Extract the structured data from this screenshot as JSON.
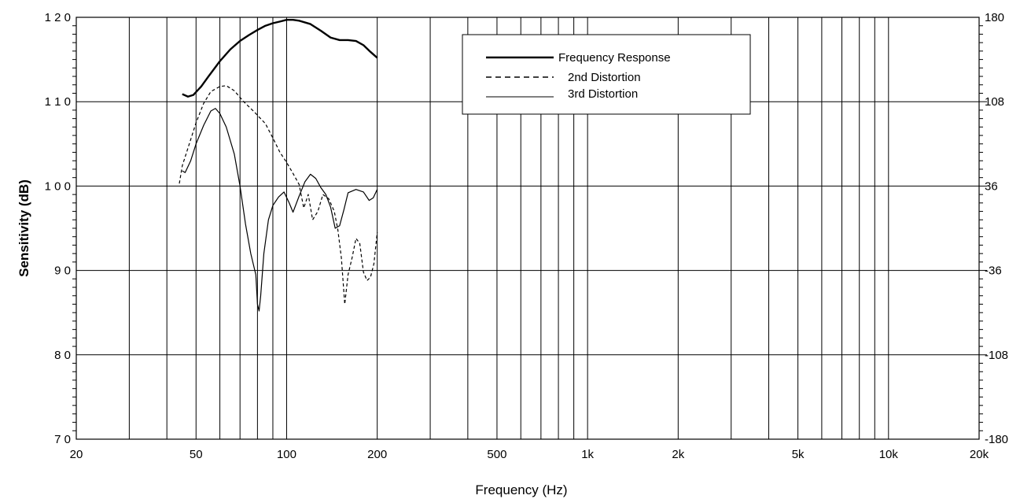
{
  "chart_data": {
    "type": "line",
    "xlabel": "Frequency (Hz)",
    "ylabel": "Sensitivity (dB)",
    "x_scale": "log",
    "xlim": [
      20,
      20000
    ],
    "ylim": [
      70,
      120
    ],
    "y2lim": [
      -180,
      180
    ],
    "grid": true,
    "legend_position": "top-center",
    "x_ticks": [
      {
        "value": 20,
        "label": "20"
      },
      {
        "value": 50,
        "label": "50"
      },
      {
        "value": 100,
        "label": "100"
      },
      {
        "value": 200,
        "label": "200"
      },
      {
        "value": 500,
        "label": "500"
      },
      {
        "value": 1000,
        "label": "1k"
      },
      {
        "value": 2000,
        "label": "2k"
      },
      {
        "value": 5000,
        "label": "5k"
      },
      {
        "value": 10000,
        "label": "10k"
      },
      {
        "value": 20000,
        "label": "20k"
      }
    ],
    "x_gridlines": [
      20,
      30,
      40,
      50,
      60,
      70,
      80,
      90,
      100,
      200,
      300,
      400,
      500,
      600,
      700,
      800,
      900,
      1000,
      2000,
      3000,
      4000,
      5000,
      6000,
      7000,
      8000,
      9000,
      10000,
      20000
    ],
    "y_ticks": [
      {
        "value": 70,
        "label": "7 0"
      },
      {
        "value": 80,
        "label": "8 0"
      },
      {
        "value": 90,
        "label": "9 0"
      },
      {
        "value": 100,
        "label": "1 0 0"
      },
      {
        "value": 110,
        "label": "1 1 0"
      },
      {
        "value": 120,
        "label": "1 2 0"
      }
    ],
    "y2_ticks": [
      {
        "value": -180,
        "label": "-180"
      },
      {
        "value": -108,
        "label": "-108"
      },
      {
        "value": -36,
        "label": "-36"
      },
      {
        "value": 36,
        "label": "36"
      },
      {
        "value": 108,
        "label": "108"
      },
      {
        "value": 180,
        "label": "180"
      }
    ],
    "series": [
      {
        "name": "Frequency Response",
        "style": "solid-thick",
        "color": "#000000",
        "points": [
          [
            45,
            110.9
          ],
          [
            47,
            110.6
          ],
          [
            49,
            110.8
          ],
          [
            52,
            111.8
          ],
          [
            55,
            113.0
          ],
          [
            60,
            114.8
          ],
          [
            65,
            116.2
          ],
          [
            70,
            117.2
          ],
          [
            75,
            117.9
          ],
          [
            80,
            118.5
          ],
          [
            85,
            119.0
          ],
          [
            90,
            119.3
          ],
          [
            95,
            119.5
          ],
          [
            100,
            119.7
          ],
          [
            105,
            119.7
          ],
          [
            110,
            119.6
          ],
          [
            120,
            119.2
          ],
          [
            130,
            118.4
          ],
          [
            140,
            117.6
          ],
          [
            150,
            117.3
          ],
          [
            160,
            117.3
          ],
          [
            170,
            117.2
          ],
          [
            180,
            116.7
          ],
          [
            190,
            115.9
          ],
          [
            200,
            115.2
          ]
        ]
      },
      {
        "name": "2nd Distortion",
        "style": "dashed",
        "color": "#000000",
        "points": [
          [
            44,
            100.3
          ],
          [
            45,
            102.4
          ],
          [
            47,
            104.5
          ],
          [
            50,
            107.5
          ],
          [
            53,
            109.8
          ],
          [
            56,
            111.2
          ],
          [
            60,
            111.8
          ],
          [
            63,
            111.9
          ],
          [
            67,
            111.3
          ],
          [
            72,
            110.0
          ],
          [
            78,
            108.8
          ],
          [
            85,
            107.4
          ],
          [
            90,
            105.7
          ],
          [
            95,
            104.0
          ],
          [
            100,
            102.8
          ],
          [
            105,
            101.5
          ],
          [
            110,
            100.2
          ],
          [
            114,
            97.4
          ],
          [
            118,
            99.0
          ],
          [
            122,
            96.0
          ],
          [
            127,
            97.0
          ],
          [
            132,
            99.0
          ],
          [
            138,
            98.5
          ],
          [
            144,
            97.0
          ],
          [
            148,
            94.8
          ],
          [
            152,
            91.5
          ],
          [
            156,
            86.0
          ],
          [
            160,
            89.5
          ],
          [
            165,
            91.5
          ],
          [
            170,
            93.8
          ],
          [
            175,
            93.2
          ],
          [
            180,
            89.8
          ],
          [
            185,
            88.8
          ],
          [
            190,
            89.2
          ],
          [
            195,
            90.8
          ],
          [
            200,
            94.5
          ]
        ]
      },
      {
        "name": "3rd Distortion",
        "style": "solid-thin",
        "color": "#000000",
        "points": [
          [
            45,
            101.8
          ],
          [
            46,
            101.6
          ],
          [
            48,
            103.0
          ],
          [
            50,
            105.0
          ],
          [
            53,
            107.2
          ],
          [
            56,
            108.9
          ],
          [
            58,
            109.2
          ],
          [
            60,
            108.6
          ],
          [
            63,
            107.0
          ],
          [
            67,
            103.8
          ],
          [
            70,
            100.0
          ],
          [
            73,
            95.5
          ],
          [
            76,
            92.0
          ],
          [
            79,
            89.5
          ],
          [
            80,
            86.0
          ],
          [
            81,
            85.2
          ],
          [
            82,
            87.0
          ],
          [
            84,
            92.0
          ],
          [
            87,
            96.0
          ],
          [
            90,
            97.7
          ],
          [
            94,
            98.7
          ],
          [
            98,
            99.3
          ],
          [
            102,
            98.0
          ],
          [
            105,
            96.9
          ],
          [
            110,
            98.8
          ],
          [
            115,
            100.5
          ],
          [
            120,
            101.4
          ],
          [
            125,
            100.9
          ],
          [
            130,
            99.8
          ],
          [
            135,
            99.0
          ],
          [
            140,
            97.5
          ],
          [
            145,
            95.0
          ],
          [
            150,
            95.3
          ],
          [
            155,
            97.2
          ],
          [
            160,
            99.2
          ],
          [
            170,
            99.6
          ],
          [
            180,
            99.3
          ],
          [
            188,
            98.3
          ],
          [
            194,
            98.6
          ],
          [
            200,
            99.6
          ]
        ]
      }
    ]
  }
}
